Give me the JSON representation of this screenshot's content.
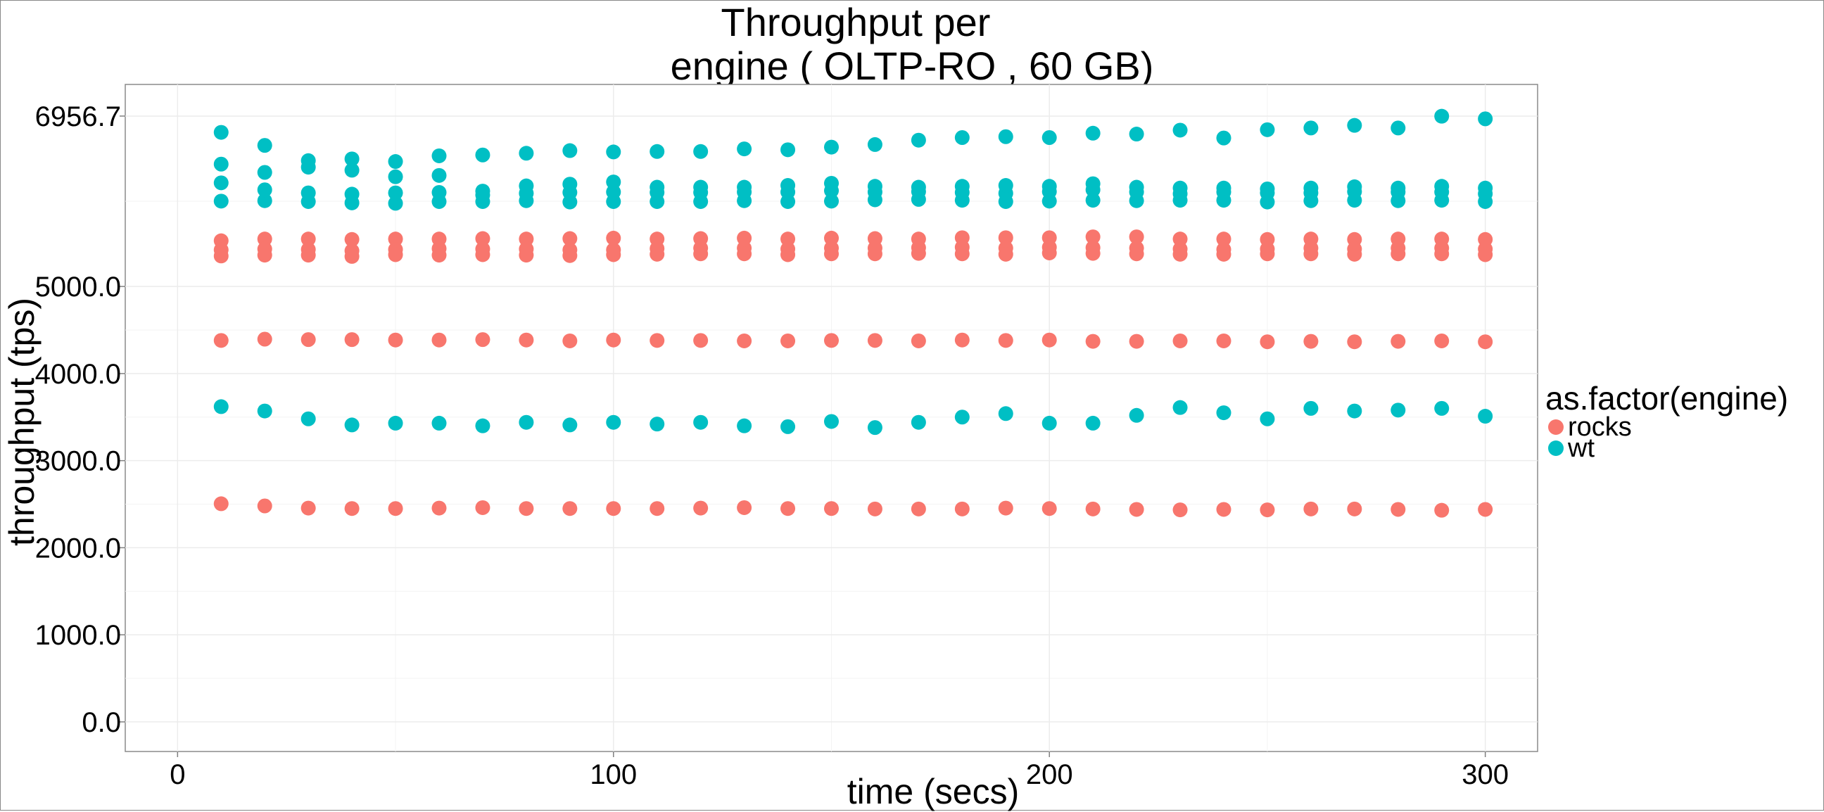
{
  "chart_data": {
    "type": "scatter",
    "title_line1": "Throughput per",
    "title_line2": "engine ( OLTP-RO ,  60 GB)",
    "xlabel": "time (secs)",
    "ylabel": "throughput (tps)",
    "xlim": [
      -12,
      312
    ],
    "ylim": [
      -340,
      7320
    ],
    "x_ticks": [
      0,
      100,
      200,
      300
    ],
    "x_tick_labels": [
      "0",
      "100",
      "200",
      "300"
    ],
    "y_ticks": [
      0,
      1000,
      2000,
      3000,
      4000,
      5000,
      6956.7
    ],
    "y_tick_labels": [
      "0.0",
      "1000.0",
      "2000.0",
      "3000.0",
      "4000.0",
      "5000.0",
      "6956.7"
    ],
    "grid": true,
    "legend_title": "as.factor(engine)",
    "legend_position": "right",
    "x": [
      10,
      20,
      30,
      40,
      50,
      60,
      70,
      80,
      90,
      100,
      110,
      120,
      130,
      140,
      150,
      160,
      170,
      180,
      190,
      200,
      210,
      220,
      230,
      240,
      250,
      260,
      270,
      280,
      290,
      300
    ],
    "series": [
      {
        "name": "rocks",
        "color": "#F8766D",
        "groups": [
          [
            2505,
            2480,
            2455,
            2450,
            2450,
            2455,
            2460,
            2450,
            2450,
            2450,
            2450,
            2455,
            2460,
            2450,
            2450,
            2445,
            2445,
            2445,
            2455,
            2450,
            2445,
            2440,
            2435,
            2440,
            2435,
            2445,
            2445,
            2440,
            2430,
            2440
          ],
          [
            4380,
            4395,
            4390,
            4390,
            4385,
            4385,
            4390,
            4385,
            4375,
            4385,
            4380,
            4380,
            4375,
            4375,
            4380,
            4380,
            4375,
            4385,
            4380,
            4385,
            4370,
            4370,
            4375,
            4375,
            4365,
            4370,
            4365,
            4370,
            4375,
            4365
          ],
          [
            5525,
            5545,
            5545,
            5540,
            5545,
            5545,
            5550,
            5545,
            5550,
            5555,
            5545,
            5550,
            5555,
            5545,
            5555,
            5550,
            5545,
            5560,
            5560,
            5560,
            5570,
            5570,
            5545,
            5545,
            5540,
            5545,
            5540,
            5545,
            5545,
            5540
          ],
          [
            5420,
            5430,
            5425,
            5410,
            5425,
            5435,
            5430,
            5430,
            5420,
            5420,
            5435,
            5440,
            5440,
            5430,
            5440,
            5440,
            5445,
            5450,
            5440,
            5450,
            5445,
            5440,
            5430,
            5425,
            5430,
            5440,
            5430,
            5440,
            5440,
            5430
          ],
          [
            5350,
            5360,
            5360,
            5345,
            5365,
            5360,
            5365,
            5360,
            5355,
            5365,
            5370,
            5375,
            5375,
            5365,
            5375,
            5375,
            5380,
            5375,
            5370,
            5385,
            5380,
            5375,
            5370,
            5370,
            5375,
            5375,
            5370,
            5375,
            5375,
            5365
          ]
        ]
      },
      {
        "name": "wt",
        "color": "#00BFC4",
        "groups": [
          [
            3620,
            3570,
            3480,
            3410,
            3430,
            3430,
            3400,
            3440,
            3410,
            3440,
            3420,
            3440,
            3400,
            3390,
            3450,
            3380,
            3440,
            3500,
            3540,
            3430,
            3430,
            3520,
            3610,
            3550,
            3480,
            3600,
            3570,
            3580,
            3600,
            3510
          ],
          [
            5980,
            5985,
            5975,
            5960,
            5955,
            5975,
            5975,
            5985,
            5970,
            5975,
            5975,
            5975,
            5985,
            5975,
            5980,
            5995,
            6000,
            5990,
            5975,
            5980,
            5990,
            5985,
            5990,
            5990,
            5970,
            5985,
            5990,
            5985,
            5990,
            5975
          ],
          [
            6190,
            6110,
            6075,
            6060,
            6075,
            6080,
            6095,
            6070,
            6080,
            6085,
            6080,
            6080,
            6085,
            6085,
            6100,
            6085,
            6090,
            6080,
            6070,
            6090,
            6110,
            6085,
            6065,
            6085,
            6075,
            6075,
            6090,
            6085,
            6085,
            6065
          ],
          [
            6405,
            6310,
            6370,
            6335,
            6260,
            6275,
            6050,
            6155,
            6175,
            6200,
            6140,
            6140,
            6140,
            6160,
            6185,
            6150,
            6140,
            6150,
            6160,
            6150,
            6180,
            6140,
            6130,
            6130,
            6120,
            6130,
            6145,
            6130,
            6150,
            6130
          ],
          [
            6770,
            6620,
            6445,
            6465,
            6435,
            6500,
            6510,
            6530,
            6560,
            6545,
            6550,
            6550,
            6580,
            6570,
            6600,
            6630,
            6680,
            6710,
            6720,
            6710,
            6760,
            6750,
            6795,
            6705,
            6800,
            6820,
            6850,
            6820,
            6955,
            6925
          ]
        ]
      }
    ]
  }
}
